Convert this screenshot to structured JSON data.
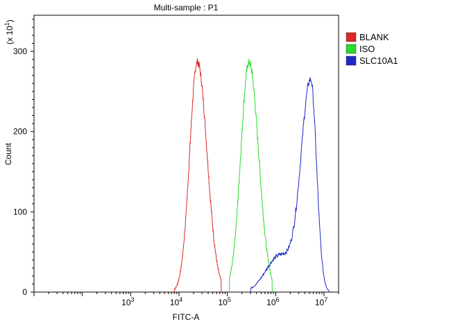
{
  "chart_data": {
    "type": "line",
    "title": "Multi-sample : P1",
    "xlabel": "FITC-A",
    "ylabel": "Count",
    "y_multiplier_label": "(x 10",
    "y_multiplier_exp": "1",
    "x_scale": "log",
    "xlim": [
      10,
      20000000
    ],
    "ylim": [
      0,
      345
    ],
    "x_ticks": [
      {
        "base": "10",
        "exp": "3",
        "value": 1000
      },
      {
        "base": "10",
        "exp": "4",
        "value": 10000
      },
      {
        "base": "10",
        "exp": "5",
        "value": 100000
      },
      {
        "base": "10",
        "exp": "6",
        "value": 1000000
      },
      {
        "base": "10",
        "exp": "7",
        "value": 10000000
      }
    ],
    "y_ticks": [
      {
        "label": "0",
        "value": 0
      },
      {
        "label": "100",
        "value": 100
      },
      {
        "label": "200",
        "value": 200
      },
      {
        "label": "300",
        "value": 300
      }
    ],
    "legend_position": "top-right",
    "series": [
      {
        "name": "BLANK",
        "color": "#dc2828",
        "shape": {
          "peak_x": 24000,
          "peak_y": 287,
          "spread_left": 0.16,
          "spread_right": 0.2,
          "start_x": 8000,
          "end_x": 75000
        }
      },
      {
        "name": "ISO",
        "color": "#28dc28",
        "shape": {
          "peak_x": 280000,
          "peak_y": 286,
          "spread_left": 0.17,
          "spread_right": 0.2,
          "start_x": 110000,
          "end_x": 850000
        }
      },
      {
        "name": "SLC10A1",
        "color": "#1c28c8",
        "shape": {
          "peak_x": 5300000,
          "peak_y": 262,
          "spread_left": 0.2,
          "spread_right": 0.12,
          "start_x": 300000,
          "end_x": 13000000,
          "shoulder_x": 1200000,
          "shoulder_y": 45
        }
      }
    ]
  }
}
